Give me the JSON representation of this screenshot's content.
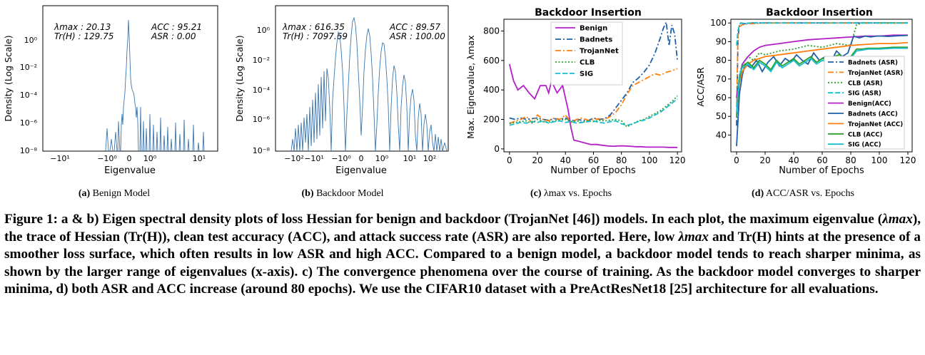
{
  "panels": {
    "a": {
      "subcaption_label": "(a)",
      "subcaption_text": "Benign Model",
      "xlabel": "Eigenvalue",
      "ylabel": "Density (Log Scale)",
      "yticks": [
        "10⁰",
        "10⁻²",
        "10⁻⁴",
        "10⁻⁶",
        "10⁻⁸"
      ],
      "xticks": [
        "−10¹",
        "−10⁰",
        "0",
        "10⁰",
        "10¹"
      ],
      "stats_left": [
        "λmax : 20.13",
        "Tr(H) : 129.75"
      ],
      "stats_right": [
        "ACC : 95.21",
        "ASR : 0.00"
      ]
    },
    "b": {
      "subcaption_label": "(b)",
      "subcaption_text": "Backdoor Model",
      "xlabel": "Eigenvalue",
      "ylabel": "Density (Log Scale)",
      "yticks": [
        "10⁰",
        "10⁻²",
        "10⁻⁴",
        "10⁻⁶",
        "10⁻⁸"
      ],
      "xticks": [
        "−10²",
        "−10¹",
        "−10⁰",
        "0",
        "10⁰",
        "10¹",
        "10²"
      ],
      "stats_left": [
        "λmax : 616.35",
        "Tr(H) : 7097.69"
      ],
      "stats_right": [
        "ACC : 89.57",
        "ASR : 100.00"
      ]
    },
    "c": {
      "subcaption_label": "(c)",
      "subcaption_text": "λmax vs. Epochs"
    },
    "d": {
      "subcaption_label": "(d)",
      "subcaption_text": "ACC/ASR vs. Epochs"
    }
  },
  "chart_data": [
    {
      "id": "c",
      "type": "line",
      "title": "Backdoor Insertion",
      "xlabel": "Number of Epochs",
      "ylabel": "Max. Eignevalue, λmax",
      "xlim": [
        -4,
        123
      ],
      "ylim": [
        -20,
        880
      ],
      "xticks": [
        0,
        20,
        40,
        60,
        80,
        100,
        120
      ],
      "yticks": [
        0,
        200,
        400,
        600,
        800
      ],
      "legend_position": "top-center",
      "series": [
        {
          "name": "Benign",
          "color": "#b41fc8",
          "dash": "solid",
          "x": [
            0,
            3,
            6,
            10,
            14,
            18,
            22,
            26,
            28,
            30,
            34,
            38,
            42,
            44,
            46,
            50,
            54,
            58,
            62,
            66,
            70,
            74,
            78,
            82,
            86,
            90,
            94,
            98,
            102,
            106,
            110,
            114,
            118,
            120
          ],
          "y": [
            575,
            460,
            400,
            430,
            380,
            340,
            430,
            430,
            380,
            460,
            380,
            430,
            260,
            140,
            60,
            50,
            40,
            30,
            30,
            25,
            20,
            18,
            20,
            20,
            18,
            15,
            15,
            12,
            12,
            12,
            12,
            10,
            10,
            10
          ]
        },
        {
          "name": "Badnets",
          "color": "#1f5fa8",
          "dash": "dashdot",
          "x": [
            0,
            4,
            8,
            12,
            16,
            20,
            24,
            28,
            32,
            36,
            40,
            44,
            48,
            52,
            56,
            60,
            64,
            68,
            72,
            76,
            80,
            84,
            88,
            92,
            96,
            100,
            104,
            108,
            110,
            112,
            114,
            116,
            118,
            120
          ],
          "y": [
            210,
            200,
            210,
            200,
            205,
            210,
            200,
            195,
            205,
            200,
            210,
            190,
            200,
            195,
            190,
            210,
            200,
            205,
            230,
            280,
            330,
            380,
            450,
            480,
            520,
            570,
            650,
            760,
            820,
            860,
            700,
            840,
            780,
            600
          ]
        },
        {
          "name": "TrojanNet",
          "color": "#ff7f0e",
          "dash": "dashdot",
          "x": [
            0,
            4,
            8,
            12,
            16,
            20,
            24,
            28,
            32,
            36,
            40,
            44,
            48,
            52,
            56,
            60,
            64,
            68,
            72,
            76,
            80,
            84,
            88,
            92,
            96,
            100,
            104,
            108,
            112,
            116,
            120
          ],
          "y": [
            170,
            190,
            200,
            220,
            180,
            230,
            200,
            190,
            210,
            200,
            230,
            180,
            200,
            210,
            195,
            200,
            205,
            200,
            220,
            250,
            300,
            370,
            430,
            450,
            470,
            490,
            510,
            500,
            520,
            530,
            545
          ]
        },
        {
          "name": "CLB",
          "color": "#2ca02c",
          "dash": "dotted",
          "x": [
            0,
            4,
            8,
            12,
            16,
            20,
            24,
            28,
            32,
            36,
            40,
            44,
            48,
            52,
            56,
            60,
            64,
            68,
            72,
            76,
            80,
            84,
            88,
            92,
            96,
            100,
            104,
            108,
            112,
            116,
            120
          ],
          "y": [
            175,
            180,
            185,
            190,
            175,
            200,
            185,
            180,
            190,
            195,
            200,
            185,
            190,
            180,
            190,
            185,
            195,
            190,
            195,
            200,
            190,
            150,
            170,
            190,
            200,
            220,
            240,
            260,
            290,
            320,
            360
          ]
        },
        {
          "name": "SIG",
          "color": "#17becf",
          "dash": "dashed",
          "x": [
            0,
            4,
            8,
            12,
            16,
            20,
            24,
            28,
            32,
            36,
            40,
            44,
            48,
            52,
            56,
            60,
            64,
            68,
            72,
            76,
            80,
            84,
            88,
            92,
            96,
            100,
            104,
            108,
            112,
            116,
            120
          ],
          "y": [
            160,
            170,
            180,
            175,
            185,
            180,
            190,
            175,
            185,
            190,
            180,
            185,
            175,
            180,
            185,
            190,
            180,
            175,
            185,
            190,
            170,
            160,
            170,
            185,
            195,
            210,
            230,
            250,
            280,
            310,
            340
          ]
        }
      ]
    },
    {
      "id": "d",
      "type": "line",
      "title": "Backdoor Insertion",
      "xlabel": "Number of Epochs",
      "ylabel": "ACC/ASR",
      "xlim": [
        -4,
        123
      ],
      "ylim": [
        31,
        102
      ],
      "xticks": [
        0,
        20,
        40,
        60,
        80,
        100,
        120
      ],
      "yticks": [
        40,
        50,
        60,
        70,
        80,
        90,
        100
      ],
      "legend_position": "right",
      "series": [
        {
          "name": "Badnets (ASR)",
          "color": "#1f5fa8",
          "dash": "dashdot",
          "x": [
            0,
            1,
            2,
            3,
            5,
            10,
            20,
            40,
            60,
            80,
            100,
            120
          ],
          "y": [
            45,
            92,
            99,
            100,
            99.5,
            100,
            100,
            100,
            100,
            100,
            100,
            100
          ]
        },
        {
          "name": "TrojanNet (ASR)",
          "color": "#ff7f0e",
          "dash": "dashdot",
          "x": [
            0,
            1,
            2,
            4,
            8,
            20,
            40,
            60,
            80,
            100,
            120
          ],
          "y": [
            55,
            95,
            98,
            99,
            99.5,
            100,
            100,
            100,
            100,
            100,
            100
          ]
        },
        {
          "name": "CLB (ASR)",
          "color": "#2ca02c",
          "dash": "dotted",
          "x": [
            0,
            2,
            4,
            8,
            12,
            16,
            20,
            30,
            40,
            50,
            60,
            70,
            80,
            84,
            88,
            92,
            100,
            110,
            120
          ],
          "y": [
            60,
            72,
            78,
            82,
            80,
            84,
            83,
            85,
            86,
            88,
            87,
            89,
            88,
            99,
            100,
            100,
            100,
            100,
            100
          ]
        },
        {
          "name": "SIG (ASR)",
          "color": "#17becf",
          "dash": "dashed",
          "x": [
            0,
            1,
            2,
            3,
            6,
            10,
            20,
            40,
            60,
            80,
            100,
            120
          ],
          "y": [
            88,
            96,
            99,
            100,
            99.8,
            100,
            100,
            100,
            100,
            100,
            100,
            100
          ]
        },
        {
          "name": "Benign(ACC)",
          "color": "#b41fc8",
          "dash": "solid",
          "x": [
            0,
            2,
            4,
            8,
            12,
            16,
            20,
            30,
            40,
            50,
            60,
            70,
            80,
            90,
            100,
            110,
            120
          ],
          "y": [
            60,
            70,
            78,
            82,
            85,
            87,
            88,
            89,
            90,
            91,
            91.5,
            92,
            92.5,
            93,
            93,
            93.5,
            93.5
          ]
        },
        {
          "name": "Badnets (ACC)",
          "color": "#1f5fa8",
          "dash": "solid",
          "x": [
            0,
            2,
            4,
            6,
            10,
            14,
            18,
            22,
            26,
            30,
            34,
            38,
            42,
            46,
            50,
            54,
            58,
            62,
            66,
            70,
            74,
            78,
            82,
            86,
            90,
            94,
            98,
            102,
            106,
            110,
            114,
            118,
            120
          ],
          "y": [
            34,
            62,
            72,
            78,
            76,
            80,
            74,
            79,
            82,
            77,
            81,
            79,
            83,
            80,
            78,
            84,
            80,
            82,
            79,
            85,
            82,
            84,
            93,
            92,
            93,
            92.5,
            93,
            93,
            92.8,
            93,
            93.2,
            93.3,
            93.4
          ]
        },
        {
          "name": "TrojanNet (ACC)",
          "color": "#ff7f0e",
          "dash": "solid",
          "x": [
            0,
            2,
            4,
            8,
            12,
            16,
            20,
            30,
            40,
            50,
            60,
            70,
            80,
            90,
            100,
            110,
            120
          ],
          "y": [
            55,
            68,
            74,
            78,
            80,
            81,
            82,
            83,
            84,
            85,
            86,
            87,
            88,
            88.5,
            89,
            89,
            89.5
          ]
        },
        {
          "name": "CLB (ACC)",
          "color": "#2ca02c",
          "dash": "solid",
          "x": [
            0,
            2,
            4,
            8,
            12,
            16,
            20,
            24,
            28,
            32,
            36,
            40,
            44,
            48,
            52,
            56,
            60,
            64,
            68,
            72,
            76,
            80,
            84,
            88,
            92,
            100,
            110,
            120
          ],
          "y": [
            50,
            70,
            77,
            79,
            76,
            80,
            78,
            75,
            80,
            77,
            79,
            81,
            78,
            80,
            82,
            79,
            81,
            80,
            82,
            83,
            81,
            82,
            86,
            86,
            86.5,
            86.5,
            87,
            87
          ]
        },
        {
          "name": "SIG (ACC)",
          "color": "#17becf",
          "dash": "solid",
          "x": [
            0,
            2,
            4,
            8,
            12,
            16,
            20,
            24,
            28,
            32,
            36,
            40,
            44,
            48,
            52,
            56,
            60,
            64,
            68,
            72,
            76,
            80,
            84,
            88,
            92,
            100,
            110,
            120
          ],
          "y": [
            52,
            72,
            76,
            78,
            75,
            79,
            77,
            74,
            79,
            76,
            78,
            80,
            77,
            79,
            81,
            78,
            80,
            79,
            81,
            82,
            80,
            81,
            85,
            85.5,
            86,
            86,
            86.5,
            86.5
          ]
        }
      ]
    }
  ],
  "caption": {
    "prefix": "Figure 1: a & b) Eigen spectral density plots of loss Hessian for benign and backdoor (TrojanNet [46]) models. In each plot, the maximum eigenvalue (",
    "lam": "λmax",
    "mid1": "), the trace of Hessian (",
    "trh": "Tr(H)",
    "mid2": "), clean test accuracy (ACC), and attack success rate (ASR) are also reported. Here, low ",
    "lam2": "λmax",
    "mid3": " and ",
    "trh2": "Tr(H)",
    "rest": " hints at the presence of a smoother loss surface, which often results in low ASR and high ACC. Compared to a benign model, a backdoor model tends to reach sharper minima, as shown by the larger range of eigenvalues (x-axis). c) The convergence phenomena over the course of training. As the backdoor model converges to sharper minima, d) both ASR and ACC increase (around 80 epochs). We use the CIFAR10 dataset with a PreActResNet18 [25] architecture for all evaluations."
  }
}
